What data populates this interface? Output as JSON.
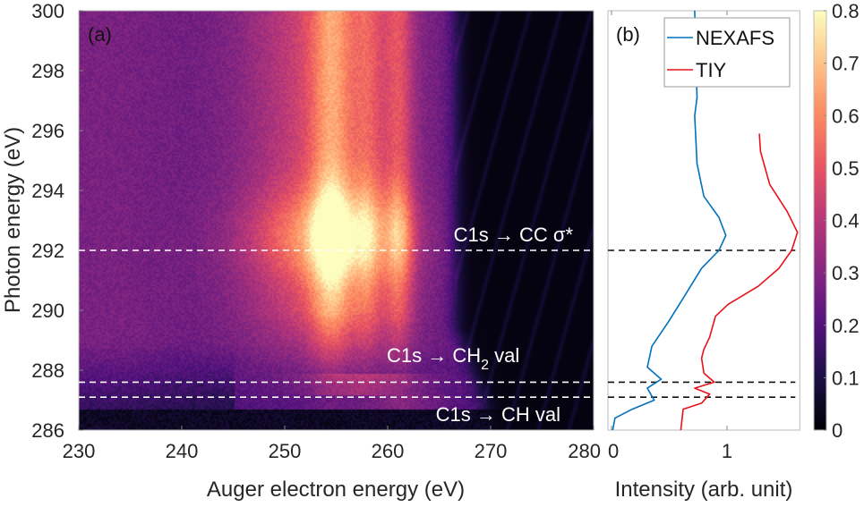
{
  "chart_data": [
    {
      "type": "heatmap",
      "panel_label": "(a)",
      "xlabel": "Auger electron energy (eV)",
      "ylabel": "Photon energy (eV)",
      "xlim": [
        230,
        280
      ],
      "ylim": [
        286,
        300
      ],
      "xticks": [
        230,
        240,
        250,
        260,
        270,
        280
      ],
      "yticks": [
        286,
        288,
        290,
        292,
        294,
        296,
        298,
        300
      ],
      "color_range": [
        0,
        0.8
      ],
      "hlines": [
        292.0,
        287.6,
        287.1
      ],
      "annotations": [
        {
          "text": "C1s → CC σ*",
          "y": 292.7
        },
        {
          "text_main": "C1s → CH",
          "text_sub": "2",
          "text_after": " val",
          "y": 288.4
        },
        {
          "text": "C1s → CH val",
          "y": 286.6
        }
      ],
      "features": {
        "auger_peaks_eV": [
          254.5,
          258.0,
          261.0
        ],
        "resonance_peak_photon_eV": 292.5,
        "cutoff_auger_eV": 266.5
      }
    },
    {
      "type": "line",
      "panel_label": "(b)",
      "xlabel": "Intensity (arb. unit)",
      "xlim": [
        0,
        1.65
      ],
      "xticks": [
        0,
        1
      ],
      "ylim": [
        286,
        300
      ],
      "hlines": [
        292.0,
        287.6,
        287.1
      ],
      "legend": "top-right",
      "series": [
        {
          "name": "NEXAFS",
          "color": "#0072bd",
          "points": [
            [
              0.72,
              300
            ],
            [
              0.74,
              297.1
            ],
            [
              0.72,
              296.5
            ],
            [
              0.74,
              294.9
            ],
            [
              0.8,
              293.8
            ],
            [
              0.93,
              293.1
            ],
            [
              0.99,
              292.5
            ],
            [
              0.93,
              292.0
            ],
            [
              0.78,
              291.4
            ],
            [
              0.62,
              290.4
            ],
            [
              0.49,
              289.6
            ],
            [
              0.35,
              288.8
            ],
            [
              0.31,
              288.1
            ],
            [
              0.43,
              287.7
            ],
            [
              0.31,
              287.4
            ],
            [
              0.37,
              287.0
            ],
            [
              0.18,
              286.7
            ],
            [
              0.03,
              286.4
            ],
            [
              0.01,
              286.0
            ]
          ]
        },
        {
          "name": "TIY",
          "color": "#e8121a",
          "points": [
            [
              1.28,
              295.9
            ],
            [
              1.29,
              295.3
            ],
            [
              1.37,
              294.2
            ],
            [
              1.52,
              293.3
            ],
            [
              1.61,
              292.6
            ],
            [
              1.56,
              292.0
            ],
            [
              1.45,
              291.4
            ],
            [
              1.27,
              290.8
            ],
            [
              1.01,
              290.2
            ],
            [
              0.9,
              289.8
            ],
            [
              0.85,
              289.1
            ],
            [
              0.8,
              288.7
            ],
            [
              0.78,
              288.4
            ],
            [
              0.8,
              287.9
            ],
            [
              0.89,
              287.6
            ],
            [
              0.72,
              287.4
            ],
            [
              0.85,
              287.2
            ],
            [
              0.78,
              286.9
            ],
            [
              0.62,
              286.7
            ],
            [
              0.6,
              286.0
            ]
          ]
        }
      ]
    },
    {
      "type": "colorbar",
      "range": [
        0,
        0.8
      ],
      "ticks": [
        "0",
        "0.1",
        "0.2",
        "0.3",
        "0.4",
        "0.5",
        "0.6",
        "0.7",
        "0.8"
      ],
      "colormap": [
        "#000004",
        "#1c1044",
        "#51127c",
        "#832681",
        "#b73779",
        "#e85362",
        "#fc8961",
        "#fec287",
        "#fcfdbf"
      ]
    }
  ]
}
